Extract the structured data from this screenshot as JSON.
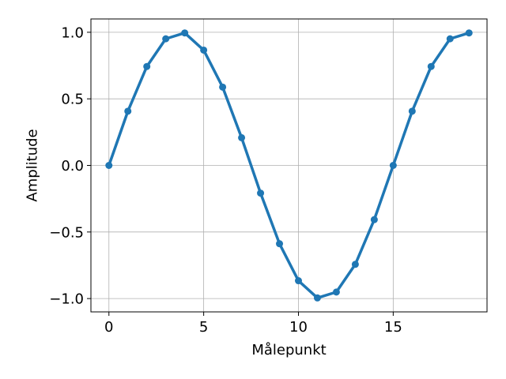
{
  "chart_data": {
    "type": "line",
    "xlabel": "Målepunkt",
    "ylabel": "Amplitude",
    "xlim": [
      -0.95,
      19.95
    ],
    "ylim": [
      -1.1,
      1.1
    ],
    "x_ticks": [
      0,
      5,
      10,
      15
    ],
    "x_tick_labels": [
      "0",
      "5",
      "10",
      "15"
    ],
    "y_ticks": [
      -1.0,
      -0.5,
      0.0,
      0.5,
      1.0
    ],
    "y_tick_labels": [
      "−1.0",
      "−0.5",
      "0.0",
      "0.5",
      "1.0"
    ],
    "grid": true,
    "series": [
      {
        "color": "#1f77b4",
        "marker": "circle",
        "x": [
          0,
          1,
          2,
          3,
          4,
          5,
          6,
          7,
          8,
          9,
          10,
          11,
          12,
          13,
          14,
          15,
          16,
          17,
          18,
          19
        ],
        "y": [
          0.0,
          0.407,
          0.743,
          0.951,
          0.995,
          0.866,
          0.588,
          0.208,
          -0.208,
          -0.588,
          -0.866,
          -0.995,
          -0.951,
          -0.743,
          -0.407,
          0.0,
          0.407,
          0.743,
          0.951,
          0.995
        ]
      }
    ]
  }
}
